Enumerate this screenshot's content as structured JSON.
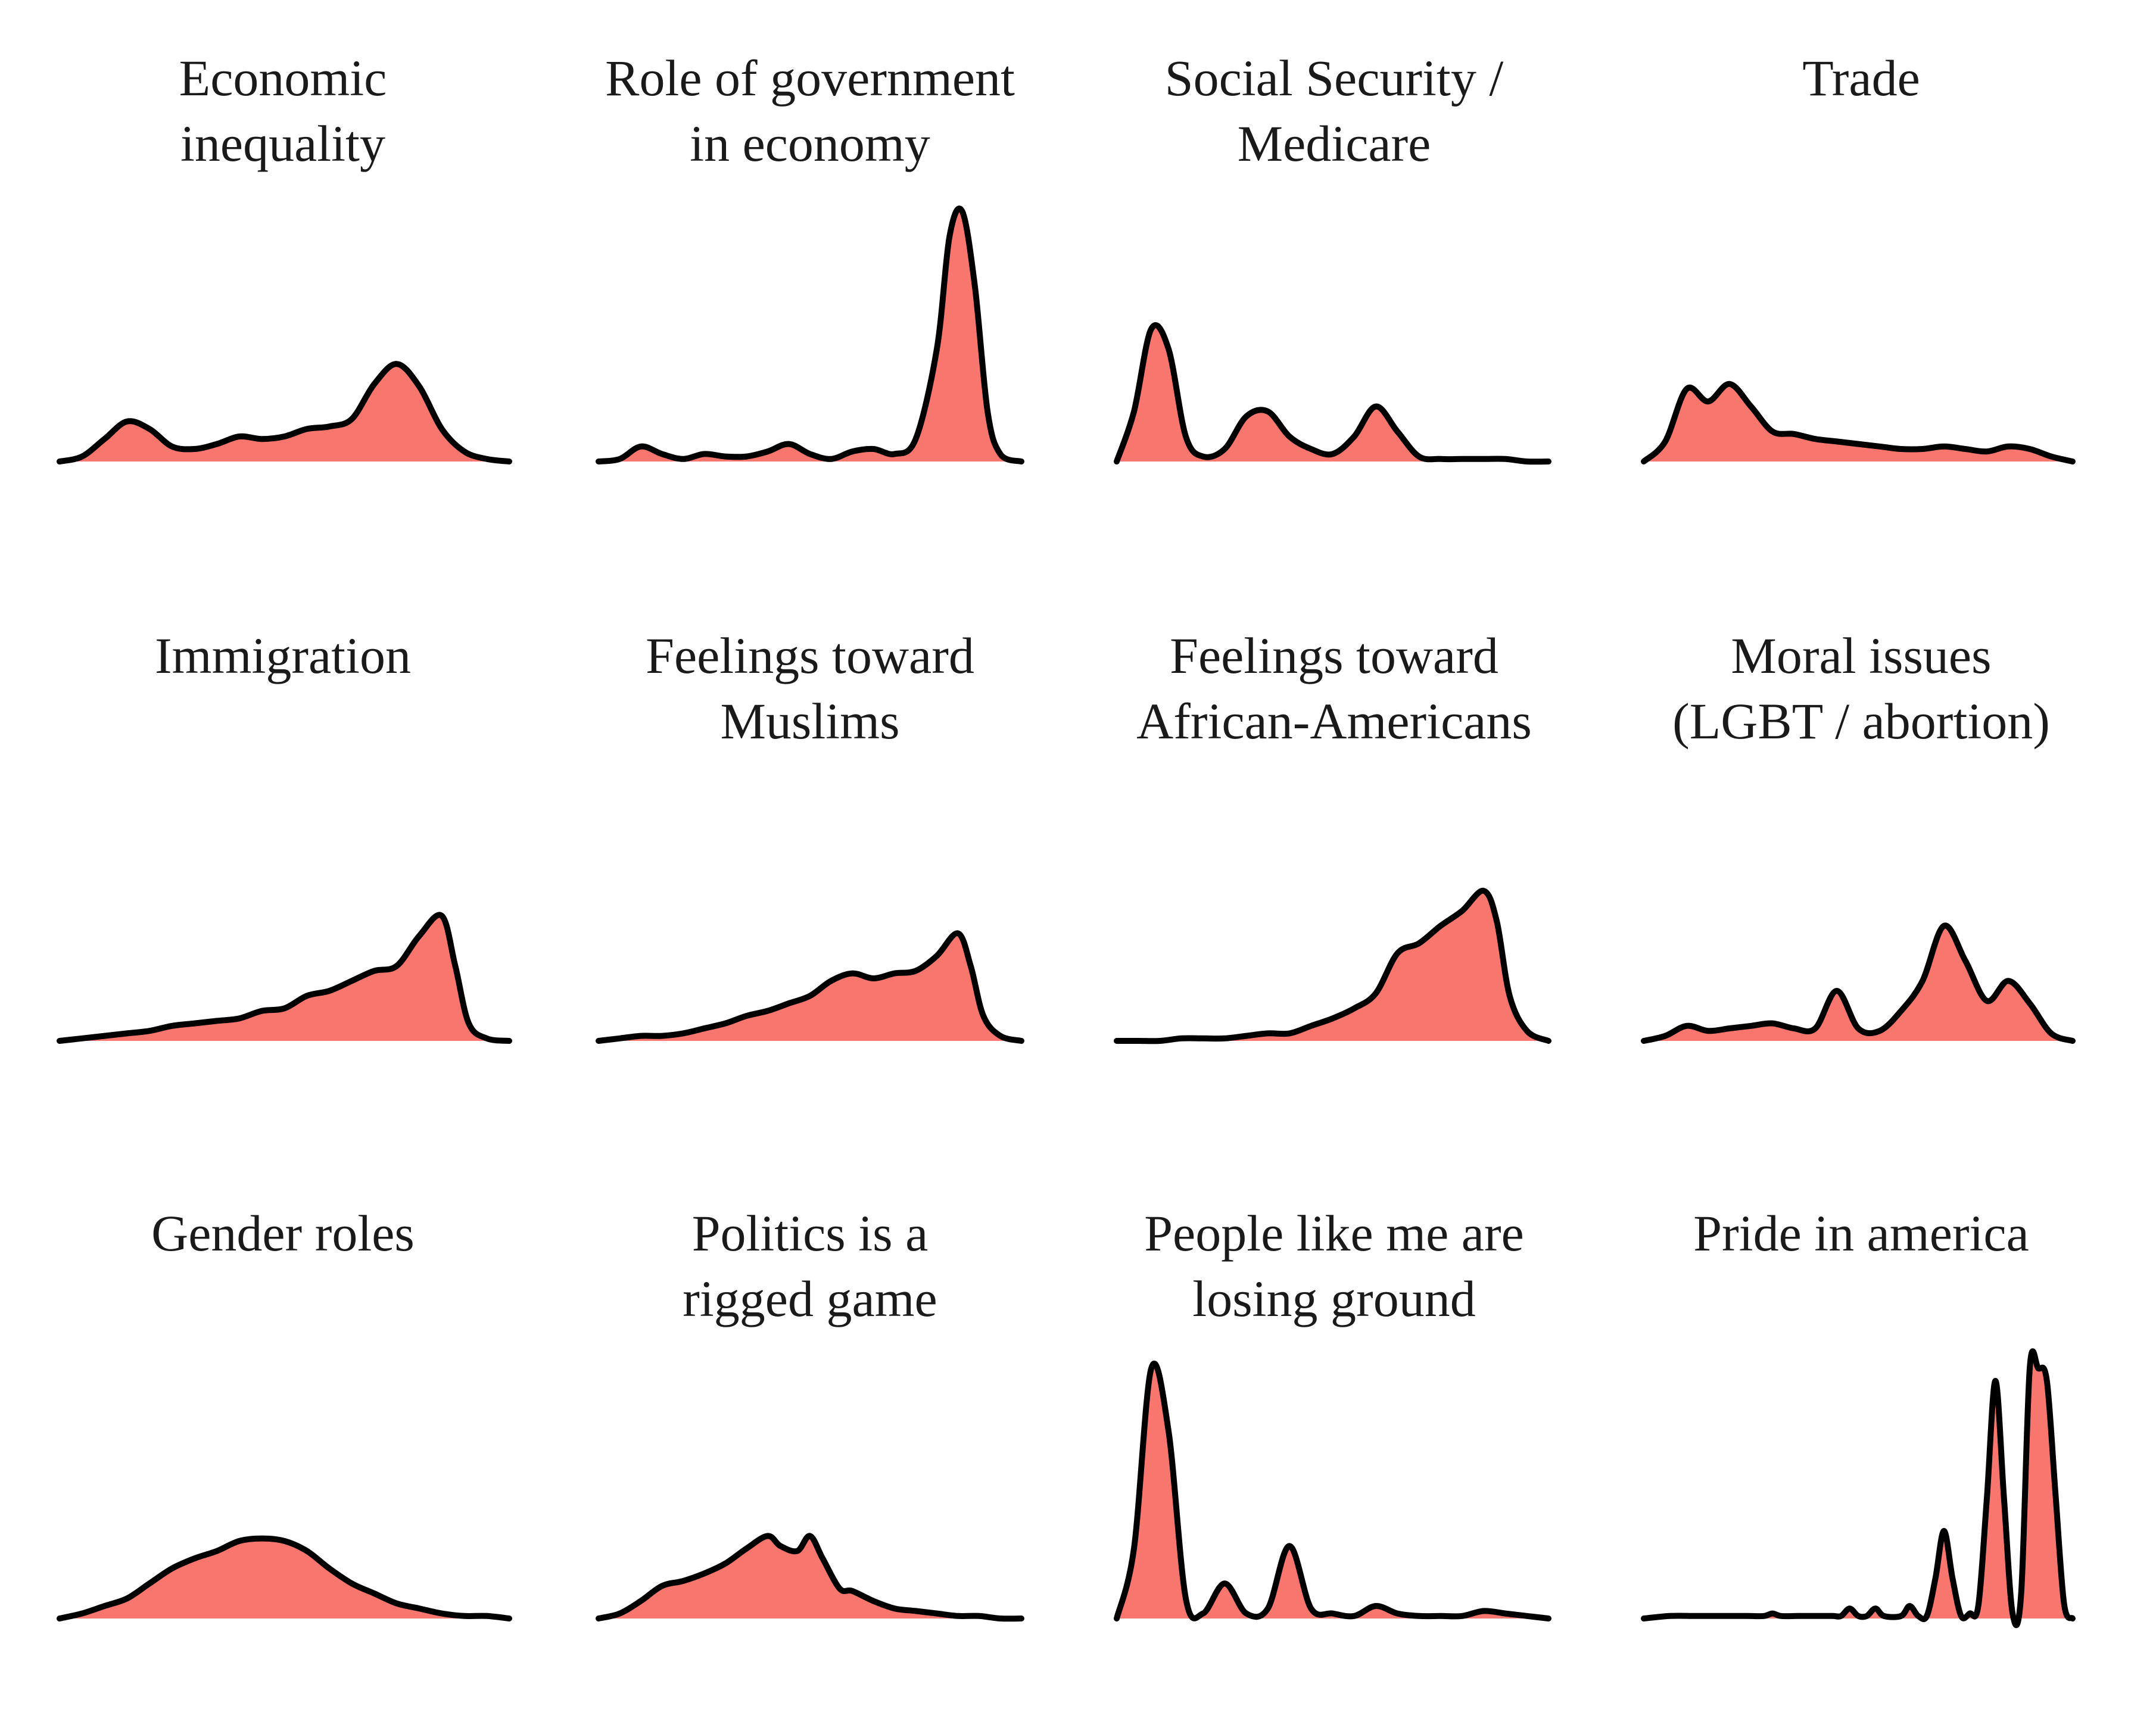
{
  "chart_data": [
    {
      "type": "area",
      "title": [
        "Economic",
        "inequality"
      ],
      "ylim": [
        0,
        1
      ],
      "x": [
        0,
        0.05,
        0.1,
        0.15,
        0.2,
        0.25,
        0.3,
        0.35,
        0.4,
        0.45,
        0.5,
        0.55,
        0.6,
        0.65,
        0.7,
        0.75,
        0.8,
        0.85,
        0.9,
        0.95,
        1
      ],
      "y": [
        0,
        0.02,
        0.09,
        0.16,
        0.13,
        0.06,
        0.05,
        0.07,
        0.1,
        0.09,
        0.1,
        0.13,
        0.14,
        0.17,
        0.31,
        0.39,
        0.3,
        0.13,
        0.04,
        0.01,
        0
      ]
    },
    {
      "type": "area",
      "title": [
        "Role of government",
        "in economy"
      ],
      "ylim": [
        0,
        1
      ],
      "x": [
        0,
        0.05,
        0.1,
        0.15,
        0.2,
        0.25,
        0.3,
        0.35,
        0.4,
        0.45,
        0.5,
        0.55,
        0.6,
        0.65,
        0.7,
        0.75,
        0.8,
        0.83,
        0.86,
        0.89,
        0.92,
        0.95,
        1
      ],
      "y": [
        0,
        0.01,
        0.06,
        0.03,
        0.01,
        0.03,
        0.02,
        0.02,
        0.04,
        0.07,
        0.03,
        0.01,
        0.04,
        0.05,
        0.03,
        0.09,
        0.45,
        0.9,
        1.0,
        0.7,
        0.2,
        0.03,
        0
      ]
    },
    {
      "type": "area",
      "title": [
        "Social Security /",
        "Medicare"
      ],
      "ylim": [
        0,
        1
      ],
      "x": [
        0,
        0.04,
        0.08,
        0.12,
        0.16,
        0.2,
        0.25,
        0.3,
        0.35,
        0.4,
        0.45,
        0.5,
        0.55,
        0.6,
        0.65,
        0.7,
        0.75,
        0.8,
        0.85,
        0.9,
        0.95,
        1
      ],
      "y": [
        0,
        0.2,
        0.53,
        0.45,
        0.1,
        0.02,
        0.05,
        0.18,
        0.2,
        0.1,
        0.05,
        0.03,
        0.1,
        0.22,
        0.12,
        0.02,
        0.01,
        0.01,
        0.01,
        0.01,
        0,
        0
      ]
    },
    {
      "type": "area",
      "title": [
        "Trade"
      ],
      "ylim": [
        0,
        1
      ],
      "x": [
        0,
        0.05,
        0.1,
        0.15,
        0.2,
        0.25,
        0.3,
        0.35,
        0.4,
        0.45,
        0.5,
        0.55,
        0.6,
        0.65,
        0.7,
        0.75,
        0.8,
        0.85,
        0.9,
        0.95,
        1
      ],
      "y": [
        0,
        0.08,
        0.29,
        0.24,
        0.31,
        0.22,
        0.12,
        0.11,
        0.09,
        0.08,
        0.07,
        0.06,
        0.05,
        0.05,
        0.06,
        0.05,
        0.04,
        0.06,
        0.05,
        0.02,
        0
      ]
    },
    {
      "type": "area",
      "title": [
        "Immigration"
      ],
      "ylim": [
        0,
        1
      ],
      "x": [
        0,
        0.05,
        0.1,
        0.15,
        0.2,
        0.25,
        0.3,
        0.35,
        0.4,
        0.45,
        0.5,
        0.55,
        0.6,
        0.65,
        0.7,
        0.75,
        0.8,
        0.85,
        0.88,
        0.91,
        0.95,
        1
      ],
      "y": [
        0,
        0.01,
        0.02,
        0.03,
        0.04,
        0.06,
        0.07,
        0.08,
        0.09,
        0.12,
        0.13,
        0.18,
        0.2,
        0.24,
        0.28,
        0.3,
        0.42,
        0.5,
        0.3,
        0.07,
        0.01,
        0
      ]
    },
    {
      "type": "area",
      "title": [
        "Feelings toward",
        "Muslims"
      ],
      "ylim": [
        0,
        1
      ],
      "x": [
        0,
        0.05,
        0.1,
        0.15,
        0.2,
        0.25,
        0.3,
        0.35,
        0.4,
        0.45,
        0.5,
        0.55,
        0.6,
        0.65,
        0.7,
        0.75,
        0.8,
        0.85,
        0.88,
        0.91,
        0.95,
        1
      ],
      "y": [
        0,
        0.01,
        0.02,
        0.02,
        0.03,
        0.05,
        0.07,
        0.1,
        0.12,
        0.15,
        0.18,
        0.24,
        0.27,
        0.25,
        0.27,
        0.28,
        0.34,
        0.43,
        0.3,
        0.1,
        0.02,
        0
      ]
    },
    {
      "type": "area",
      "title": [
        "Feelings toward",
        "African-Americans"
      ],
      "ylim": [
        0,
        1
      ],
      "x": [
        0,
        0.05,
        0.1,
        0.15,
        0.2,
        0.25,
        0.3,
        0.35,
        0.4,
        0.45,
        0.5,
        0.55,
        0.6,
        0.65,
        0.7,
        0.75,
        0.8,
        0.85,
        0.88,
        0.91,
        0.95,
        1
      ],
      "y": [
        0,
        0,
        0,
        0.01,
        0.01,
        0.01,
        0.02,
        0.03,
        0.03,
        0.06,
        0.09,
        0.13,
        0.19,
        0.35,
        0.39,
        0.46,
        0.52,
        0.6,
        0.48,
        0.18,
        0.04,
        0
      ]
    },
    {
      "type": "area",
      "title": [
        "Moral issues",
        "(LGBT / abortion)"
      ],
      "ylim": [
        0,
        1
      ],
      "x": [
        0,
        0.05,
        0.1,
        0.15,
        0.2,
        0.25,
        0.3,
        0.35,
        0.4,
        0.45,
        0.5,
        0.55,
        0.6,
        0.65,
        0.7,
        0.75,
        0.8,
        0.85,
        0.9,
        0.95,
        1
      ],
      "y": [
        0,
        0.02,
        0.06,
        0.04,
        0.05,
        0.06,
        0.07,
        0.05,
        0.05,
        0.2,
        0.05,
        0.04,
        0.12,
        0.24,
        0.46,
        0.32,
        0.16,
        0.24,
        0.15,
        0.03,
        0
      ]
    },
    {
      "type": "area",
      "title": [
        "Gender roles"
      ],
      "ylim": [
        0,
        1
      ],
      "x": [
        0,
        0.05,
        0.1,
        0.15,
        0.2,
        0.25,
        0.3,
        0.35,
        0.4,
        0.45,
        0.5,
        0.55,
        0.6,
        0.65,
        0.7,
        0.75,
        0.8,
        0.85,
        0.9,
        0.95,
        1
      ],
      "y": [
        0,
        0.02,
        0.05,
        0.08,
        0.14,
        0.2,
        0.24,
        0.27,
        0.31,
        0.32,
        0.31,
        0.27,
        0.2,
        0.14,
        0.1,
        0.06,
        0.04,
        0.02,
        0.01,
        0.01,
        0
      ]
    },
    {
      "type": "area",
      "title": [
        "Politics is a",
        "rigged game"
      ],
      "ylim": [
        0,
        1
      ],
      "x": [
        0,
        0.05,
        0.1,
        0.15,
        0.2,
        0.25,
        0.3,
        0.35,
        0.4,
        0.43,
        0.47,
        0.5,
        0.53,
        0.57,
        0.6,
        0.65,
        0.7,
        0.75,
        0.8,
        0.85,
        0.9,
        0.95,
        1
      ],
      "y": [
        0,
        0.02,
        0.07,
        0.13,
        0.15,
        0.18,
        0.22,
        0.28,
        0.33,
        0.29,
        0.27,
        0.33,
        0.24,
        0.12,
        0.11,
        0.07,
        0.04,
        0.03,
        0.02,
        0.01,
        0.01,
        0,
        0
      ]
    },
    {
      "type": "area",
      "title": [
        "People like me are",
        "losing ground"
      ],
      "ylim": [
        0,
        1
      ],
      "x": [
        0,
        0.04,
        0.08,
        0.12,
        0.16,
        0.2,
        0.25,
        0.3,
        0.35,
        0.4,
        0.45,
        0.5,
        0.55,
        0.6,
        0.65,
        0.7,
        0.75,
        0.8,
        0.85,
        0.9,
        0.95,
        1
      ],
      "y": [
        0,
        0.28,
        1.0,
        0.75,
        0.08,
        0.02,
        0.14,
        0.02,
        0.04,
        0.29,
        0.04,
        0.02,
        0.01,
        0.05,
        0.02,
        0.01,
        0.01,
        0.01,
        0.03,
        0.02,
        0.01,
        0
      ]
    },
    {
      "type": "area",
      "title": [
        "Pride in america"
      ],
      "ylim": [
        0,
        1
      ],
      "x": [
        0,
        0.06,
        0.12,
        0.18,
        0.24,
        0.28,
        0.3,
        0.32,
        0.36,
        0.4,
        0.44,
        0.46,
        0.48,
        0.5,
        0.52,
        0.54,
        0.56,
        0.6,
        0.62,
        0.64,
        0.66,
        0.68,
        0.7,
        0.72,
        0.74,
        0.76,
        0.78,
        0.8,
        0.82,
        0.84,
        0.86,
        0.88,
        0.9,
        0.92,
        0.94,
        0.96,
        0.98,
        1
      ],
      "y": [
        0,
        0.01,
        0.01,
        0.01,
        0.01,
        0.01,
        0.02,
        0.01,
        0.01,
        0.01,
        0.01,
        0.01,
        0.04,
        0.01,
        0.01,
        0.04,
        0.01,
        0.01,
        0.05,
        0.01,
        0.01,
        0.16,
        0.35,
        0.16,
        0.01,
        0.02,
        0.05,
        0.48,
        0.95,
        0.48,
        0.02,
        0.1,
        1.0,
        1.0,
        0.95,
        0.5,
        0.06,
        0
      ]
    }
  ],
  "style": {
    "fill_color": "#f8766d",
    "line_color": "#000000"
  }
}
